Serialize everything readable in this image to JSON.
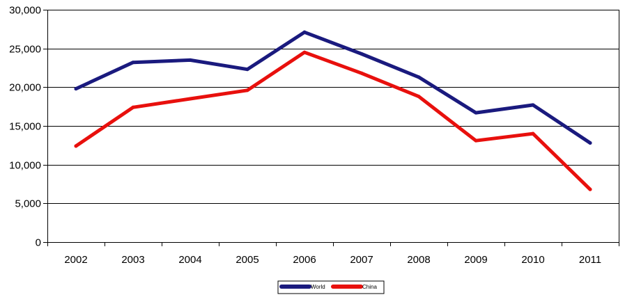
{
  "chart_data": {
    "type": "line",
    "categories": [
      "2002",
      "2003",
      "2004",
      "2005",
      "2006",
      "2007",
      "2008",
      "2009",
      "2010",
      "2011"
    ],
    "ylim": [
      0,
      30000
    ],
    "yticks": [
      0,
      5000,
      10000,
      15000,
      20000,
      25000,
      30000
    ],
    "ytick_labels": [
      "0",
      "5,000",
      "10,000",
      "15,000",
      "20,000",
      "25,000",
      "30,000"
    ],
    "grid": "horizontal",
    "legend_position": "bottom",
    "series": [
      {
        "name": "World",
        "color": "#1a1a7e",
        "values": [
          19800,
          23200,
          23500,
          22300,
          27100,
          24300,
          21300,
          16700,
          17700,
          12800
        ]
      },
      {
        "name": "China",
        "color": "#e8100d",
        "values": [
          12400,
          17400,
          18500,
          19600,
          24500,
          21800,
          18800,
          13100,
          14000,
          6800
        ]
      }
    ]
  }
}
